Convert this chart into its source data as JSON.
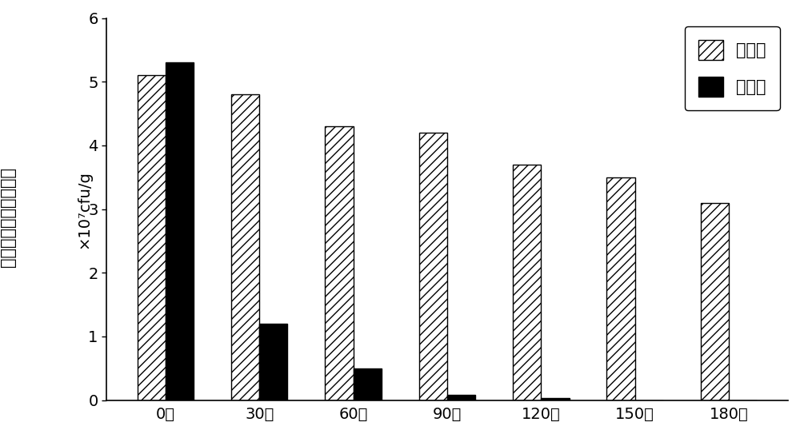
{
  "categories": [
    "0天",
    "30天",
    "60天",
    "90天",
    "120天",
    "150天",
    "180天"
  ],
  "microcapsule_values": [
    5.1,
    4.8,
    4.3,
    4.2,
    3.7,
    3.5,
    3.1
  ],
  "fermentation_values": [
    5.3,
    1.2,
    0.5,
    0.08,
    0.03,
    0.0,
    0.0
  ],
  "ylim": [
    0,
    6
  ],
  "yticks": [
    0,
    1,
    2,
    3,
    4,
    5,
    6
  ],
  "ylabel_chinese": "阿姆利则链霉菌活菌数",
  "ylabel_unit": "×10⁷cfu/g",
  "legend_microcapsule": "微胶囊",
  "legend_fermentation": "发酵液",
  "bar_width": 0.3,
  "hatch_pattern": "///",
  "microcapsule_facecolor": "#ffffff",
  "microcapsule_edgecolor": "#000000",
  "fermentation_facecolor": "#000000",
  "fermentation_edgecolor": "#000000",
  "background_color": "#ffffff",
  "figsize": [
    10.0,
    5.43
  ],
  "dpi": 100,
  "axis_fontsize": 14,
  "tick_fontsize": 14,
  "legend_fontsize": 15,
  "ylabel_fontsize": 15
}
